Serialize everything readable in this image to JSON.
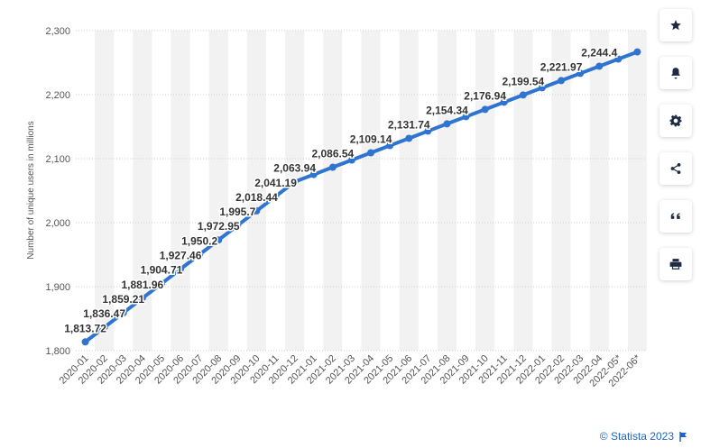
{
  "chart_data": {
    "type": "line",
    "ylabel": "Number of unique users in millions",
    "xlabel": "",
    "ylim": [
      1800,
      2300
    ],
    "yticks": [
      1800,
      1900,
      2000,
      2100,
      2200,
      2300
    ],
    "ytick_labels": [
      "1,800",
      "1,900",
      "2,000",
      "2,100",
      "2,200",
      "2,300"
    ],
    "grid": true,
    "color": "#2f74d0",
    "categories": [
      "2020-01",
      "2020-02",
      "2020-03",
      "2020-04",
      "2020-05",
      "2020-06",
      "2020-07",
      "2020-08",
      "2020-09",
      "2020-10",
      "2020-11",
      "2020-12",
      "2021-01",
      "2021-02",
      "2021-03",
      "2021-04",
      "2021-05",
      "2021-06",
      "2021-07",
      "2021-08",
      "2021-09",
      "2021-10",
      "2021-11",
      "2021-12",
      "2022-01",
      "2022-02",
      "2022-03",
      "2022-04",
      "2022-05*",
      "2022-06*"
    ],
    "values": [
      1813.72,
      1836.47,
      1859.21,
      1881.96,
      1904.71,
      1927.46,
      1950.2,
      1972.95,
      1995.7,
      2018.44,
      2041.19,
      2063.94,
      2075.24,
      2086.54,
      2097.84,
      2109.14,
      2120.44,
      2131.74,
      2143.04,
      2154.34,
      2165.64,
      2176.94,
      2188.24,
      2199.54,
      2210.76,
      2221.97,
      2233.19,
      2244.4,
      2255.6,
      2266.8
    ],
    "data_labels": [
      {
        "index": 0,
        "text": "1,813.72"
      },
      {
        "index": 1,
        "text": "1,836.47"
      },
      {
        "index": 2,
        "text": "1,859.21"
      },
      {
        "index": 3,
        "text": "1,881.96"
      },
      {
        "index": 4,
        "text": "1,904.71"
      },
      {
        "index": 5,
        "text": "1,927.46"
      },
      {
        "index": 6,
        "text": "1,950.2"
      },
      {
        "index": 7,
        "text": "1,972.95"
      },
      {
        "index": 8,
        "text": "1,995.7"
      },
      {
        "index": 9,
        "text": "2,018.44"
      },
      {
        "index": 10,
        "text": "2,041.19"
      },
      {
        "index": 11,
        "text": "2,063.94"
      },
      {
        "index": 13,
        "text": "2,086.54"
      },
      {
        "index": 15,
        "text": "2,109.14"
      },
      {
        "index": 17,
        "text": "2,131.74"
      },
      {
        "index": 19,
        "text": "2,154.34"
      },
      {
        "index": 21,
        "text": "2,176.94"
      },
      {
        "index": 23,
        "text": "2,199.54"
      },
      {
        "index": 25,
        "text": "2,221.97"
      },
      {
        "index": 27,
        "text": "2,244.4"
      }
    ]
  },
  "toolbar": {
    "buttons": [
      {
        "icon": "star-icon",
        "name": "favorite-button"
      },
      {
        "icon": "bell-icon",
        "name": "notification-button"
      },
      {
        "icon": "gear-icon",
        "name": "settings-button"
      },
      {
        "icon": "share-icon",
        "name": "share-button"
      },
      {
        "icon": "quote-icon",
        "name": "cite-button"
      },
      {
        "icon": "print-icon",
        "name": "print-button"
      }
    ]
  },
  "credit": {
    "text": "© Statista 2023",
    "icon": "flag-icon"
  }
}
